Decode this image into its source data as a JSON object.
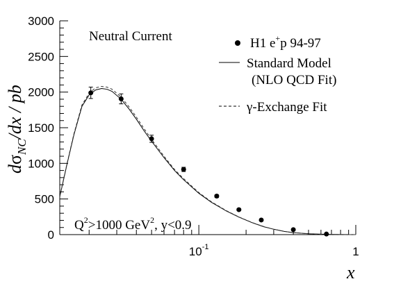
{
  "chart_data": {
    "type": "line",
    "xscale": "log",
    "xlim": [
      0.013,
      1
    ],
    "ylim": [
      0,
      3000
    ],
    "grid": false,
    "legend_position": "top-right",
    "xlabel": "x",
    "ylabel": {
      "prefix": "d",
      "sigma": "σ",
      "subscript": "NC",
      "suffix": "/dx  / pb"
    },
    "yticks": [
      0,
      500,
      1000,
      1500,
      2000,
      2500,
      3000
    ],
    "xtick_labels": [
      {
        "value": 0.1,
        "base": "10",
        "exp": "-1"
      },
      {
        "value": 1,
        "base": "1",
        "exp": ""
      }
    ],
    "annotation_top": "Neutral Current",
    "annotation_bottom": {
      "q": "Q",
      "q_exp": "2",
      "mid": ">1000 GeV",
      "gev_exp": "2",
      "tail": ", y<0.9"
    },
    "legend": {
      "data": {
        "label": "H1  e",
        "sup": "+",
        "tail": "p 94-97"
      },
      "sm_line1": "Standard Model",
      "sm_line2": "(NLO QCD Fit)",
      "gamma": {
        "symbol": "γ",
        "tail": "-Exchange Fit"
      }
    },
    "series": [
      {
        "kind": "points",
        "x": [
          0.0205,
          0.032,
          0.05,
          0.08,
          0.13,
          0.18,
          0.25,
          0.4,
          0.65
        ],
        "y": [
          1990,
          1905,
          1345,
          915,
          540,
          350,
          205,
          70,
          8
        ],
        "err": [
          80,
          70,
          50,
          30,
          20,
          15,
          10,
          6,
          3
        ]
      },
      {
        "kind": "line",
        "style": "solid",
        "x": [
          0.013,
          0.0145,
          0.016,
          0.018,
          0.02,
          0.022,
          0.024,
          0.026,
          0.028,
          0.032,
          0.036,
          0.04,
          0.045,
          0.05,
          0.06,
          0.07,
          0.08,
          0.1,
          0.12,
          0.15,
          0.18,
          0.22,
          0.26,
          0.3,
          0.35,
          0.4,
          0.5,
          0.6,
          0.7,
          0.8,
          0.9,
          1.0
        ],
        "y": [
          530,
          1000,
          1400,
          1800,
          1960,
          2030,
          2050,
          2040,
          2010,
          1900,
          1760,
          1620,
          1450,
          1310,
          1080,
          900,
          770,
          580,
          455,
          330,
          245,
          165,
          110,
          75,
          45,
          28,
          12,
          6,
          3,
          1,
          0.5,
          0
        ]
      },
      {
        "kind": "line",
        "style": "dashed",
        "x": [
          0.013,
          0.0145,
          0.016,
          0.018,
          0.02,
          0.022,
          0.024,
          0.026,
          0.028,
          0.032,
          0.036,
          0.04,
          0.045,
          0.05,
          0.06,
          0.07,
          0.08,
          0.1,
          0.12,
          0.15,
          0.18,
          0.22,
          0.26,
          0.3,
          0.35,
          0.4,
          0.5,
          0.6,
          0.7,
          0.8,
          0.9,
          1.0
        ],
        "y": [
          540,
          1010,
          1415,
          1820,
          1985,
          2060,
          2080,
          2070,
          2040,
          1930,
          1790,
          1650,
          1480,
          1335,
          1100,
          915,
          785,
          590,
          462,
          335,
          248,
          167,
          112,
          76,
          46,
          28,
          12,
          6,
          3,
          1,
          0.5,
          0
        ]
      }
    ]
  }
}
